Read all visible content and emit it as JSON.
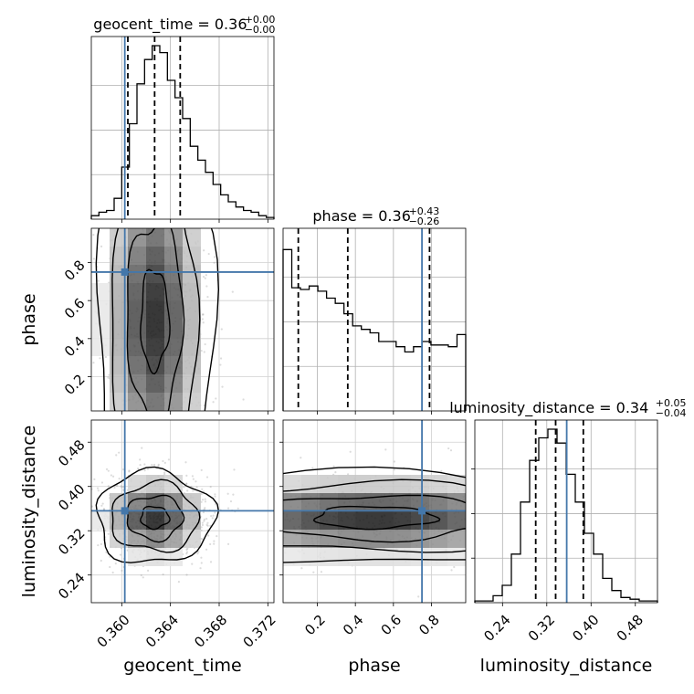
{
  "chart_data": {
    "type": "corner",
    "truth_color": "#4477aa",
    "parameters": [
      {
        "name": "geocent_time",
        "range": [
          0.3575,
          0.3725
        ],
        "ticks": [
          0.36,
          0.364,
          0.368,
          0.372
        ],
        "tick_labels": [
          "0.360",
          "0.364",
          "0.368",
          "0.372"
        ],
        "truth": 0.36025,
        "quantiles": [
          0.3605,
          0.3627,
          0.3648
        ],
        "title": {
          "main": "geocent_time = 0.36",
          "sup": "+0.00",
          "sub": "−0.00"
        },
        "hist": [
          0.02,
          0.04,
          0.05,
          0.12,
          0.3,
          0.55,
          0.78,
          0.92,
          1.0,
          0.96,
          0.8,
          0.7,
          0.58,
          0.42,
          0.34,
          0.27,
          0.2,
          0.14,
          0.1,
          0.07,
          0.05,
          0.04,
          0.02,
          0.01
        ]
      },
      {
        "name": "phase",
        "range": [
          0.02,
          0.98
        ],
        "ticks": [
          0.2,
          0.4,
          0.6,
          0.8
        ],
        "tick_labels": [
          "0.2",
          "0.4",
          "0.6",
          "0.8"
        ],
        "truth": 0.75,
        "quantiles": [
          0.1,
          0.36,
          0.79
        ],
        "title": {
          "main": "phase = 0.36",
          "sup": "+0.43",
          "sub": "−0.26"
        },
        "hist": [
          0.93,
          0.71,
          0.7,
          0.72,
          0.69,
          0.65,
          0.62,
          0.56,
          0.49,
          0.47,
          0.45,
          0.4,
          0.4,
          0.37,
          0.34,
          0.37,
          0.4,
          0.38,
          0.38,
          0.37,
          0.44
        ]
      },
      {
        "name": "luminosity_distance",
        "range": [
          0.19,
          0.52
        ],
        "ticks": [
          0.24,
          0.32,
          0.4,
          0.48
        ],
        "tick_labels": [
          "0.24",
          "0.32",
          "0.40",
          "0.48"
        ],
        "truth": 0.356,
        "quantiles": [
          0.3,
          0.336,
          0.386
        ],
        "title": {
          "main": "luminosity_distance = 0.34",
          "sup": "+0.05",
          "sub": "−0.04"
        },
        "hist": [
          0.01,
          0.01,
          0.04,
          0.1,
          0.28,
          0.58,
          0.82,
          0.95,
          1.0,
          0.92,
          0.74,
          0.58,
          0.4,
          0.28,
          0.14,
          0.07,
          0.03,
          0.02,
          0.01,
          0.01
        ]
      }
    ],
    "grid": true,
    "legend": "none"
  }
}
